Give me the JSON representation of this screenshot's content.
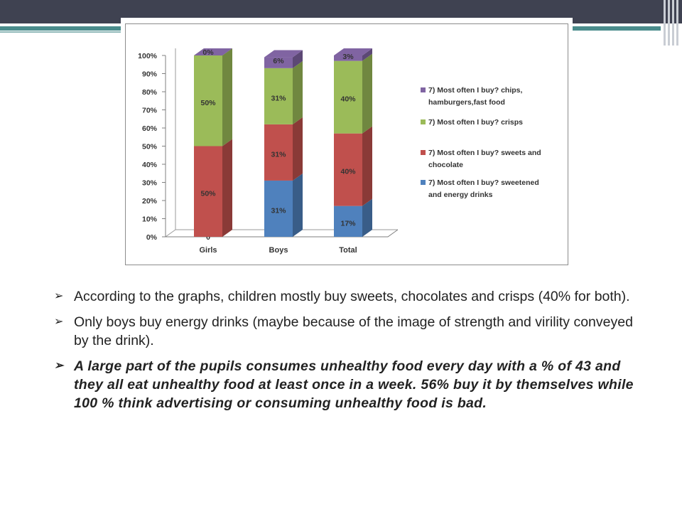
{
  "chart_data": {
    "type": "bar",
    "stacked": true,
    "categories": [
      "Girls",
      "Boys",
      "Total"
    ],
    "yticks": [
      "0%",
      "10%",
      "20%",
      "30%",
      "40%",
      "50%",
      "60%",
      "70%",
      "80%",
      "90%",
      "100%"
    ],
    "ylim": [
      0,
      100
    ],
    "series": [
      {
        "name": "7) Most often I buy? sweetened and energy drinks",
        "color": "#4f81bd",
        "values": [
          0,
          31,
          17
        ],
        "labels": [
          "0",
          "31%",
          "17%"
        ]
      },
      {
        "name": "7) Most often I buy? sweets and chocolate",
        "color": "#c0504d",
        "values": [
          50,
          31,
          40
        ],
        "labels": [
          "50%",
          "31%",
          "40%"
        ]
      },
      {
        "name": "7) Most often I buy? crisps",
        "color": "#9bbb59",
        "values": [
          50,
          31,
          40
        ],
        "labels": [
          "50%",
          "31%",
          "40%"
        ]
      },
      {
        "name": "7) Most often I buy? chips, hamburgers,fast food",
        "color": "#8064a2",
        "values": [
          0,
          6,
          3
        ],
        "labels": [
          "0%",
          "6%",
          "3%"
        ]
      }
    ],
    "legend": [
      {
        "line1": "7) Most often I buy? chips,",
        "line2": "hamburgers,fast food",
        "color": "#8064a2"
      },
      {
        "line1": "7) Most often I buy? crisps",
        "line2": "",
        "color": "#9bbb59"
      },
      {
        "line1": "7) Most often I buy? sweets and",
        "line2": "chocolate",
        "color": "#c0504d"
      },
      {
        "line1": "7) Most often I buy? sweetened",
        "line2": "and energy drinks",
        "color": "#4f81bd"
      }
    ],
    "legend_position": "right",
    "grid": false
  },
  "bullets": [
    {
      "text": "According to the graphs, children mostly buy sweets, chocolates and crisps (40% for both)."
    },
    {
      "text": "Only boys buy energy drinks (maybe because of the image of strength and virility conveyed by the drink)."
    },
    {
      "text": "A large part of the pupils consumes unhealthy food every day with a % of 43 and they all eat unhealthy food at least once in a week. 56% buy it by themselves while 100 % think advertising or consuming unhealthy food is bad."
    }
  ],
  "bullet_glyph": "➢"
}
